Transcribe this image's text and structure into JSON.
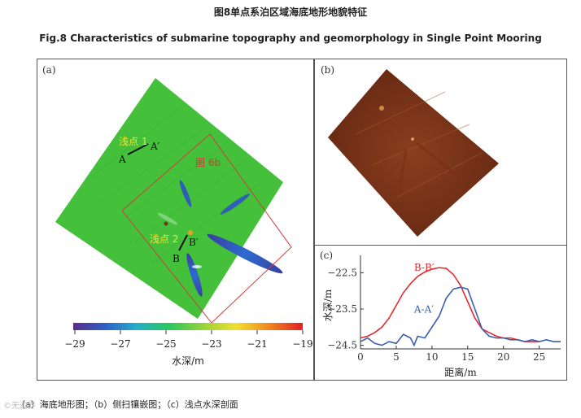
{
  "figure": {
    "title_cn": "图8单点系泊区域海底地形地貌特征",
    "title_en": "Fig.8 Characteristics of submarine topography and geomorphology in Single Point Mooring",
    "caption": "（a）海底地形图；（b）侧扫镶嵌图；（c）浅点水深剖面",
    "watermark": "©无边界"
  },
  "panel_a": {
    "label": "(a)",
    "annotations": {
      "shoal1": "浅点 1",
      "shoal2": "浅点 2",
      "fig6b": "图 6b",
      "A": "A",
      "A_prime": "A′",
      "B": "B",
      "B_prime": "B′"
    },
    "colorbar": {
      "ticks": [
        "−29",
        "−27",
        "−25",
        "−23",
        "−21",
        "−19"
      ],
      "label": "水深/m",
      "colors": [
        "#5a2d8a",
        "#2c5fc9",
        "#24b0c8",
        "#2bc85a",
        "#9ad23a",
        "#f0e030",
        "#f08a20",
        "#e02020"
      ]
    }
  },
  "panel_b": {
    "label": "(b)"
  },
  "panel_c": {
    "label": "(c)"
  },
  "chart_data": {
    "type": "line",
    "title": "",
    "xlabel": "距离/m",
    "ylabel": "水深/m",
    "xlim": [
      0,
      28
    ],
    "ylim": [
      -24.6,
      -22.2
    ],
    "xticks": [
      0,
      5,
      10,
      15,
      20,
      25
    ],
    "xtick_labels": [
      "0",
      "5",
      "10",
      "15",
      "20",
      "25"
    ],
    "yticks": [
      -22.5,
      -23.5,
      -24.5
    ],
    "ytick_labels": [
      "−22.5",
      "−23.5",
      "−24.5"
    ],
    "series": [
      {
        "name": "B-B′",
        "color": "#e8282a",
        "x": [
          0,
          1,
          2,
          3,
          4,
          5,
          6,
          7,
          8,
          9,
          10,
          11,
          12,
          13,
          14,
          15,
          16,
          17,
          18,
          19,
          20,
          21,
          22,
          23,
          24,
          25
        ],
        "y": [
          -24.3,
          -24.25,
          -24.15,
          -24.0,
          -23.75,
          -23.4,
          -23.05,
          -22.8,
          -22.6,
          -22.48,
          -22.4,
          -22.36,
          -22.38,
          -22.55,
          -22.85,
          -23.3,
          -23.75,
          -24.05,
          -24.15,
          -24.25,
          -24.3,
          -24.3,
          -24.35,
          -24.4,
          -24.4,
          -24.4
        ]
      },
      {
        "name": "A-A′",
        "color": "#3a5fb0",
        "x": [
          0,
          1,
          2,
          3,
          4,
          5,
          6,
          7,
          7.5,
          8,
          9,
          10,
          11,
          12,
          13,
          14,
          15,
          16,
          17,
          18,
          19,
          20,
          21,
          22,
          23,
          24,
          25,
          26,
          27,
          28
        ],
        "y": [
          -24.4,
          -24.3,
          -24.45,
          -24.5,
          -24.4,
          -24.45,
          -24.2,
          -24.3,
          -24.5,
          -24.25,
          -24.3,
          -24.0,
          -23.7,
          -23.2,
          -22.95,
          -22.9,
          -22.95,
          -23.5,
          -24.05,
          -24.25,
          -24.3,
          -24.3,
          -24.35,
          -24.35,
          -24.4,
          -24.35,
          -24.4,
          -24.35,
          -24.4,
          -24.4
        ]
      }
    ]
  }
}
